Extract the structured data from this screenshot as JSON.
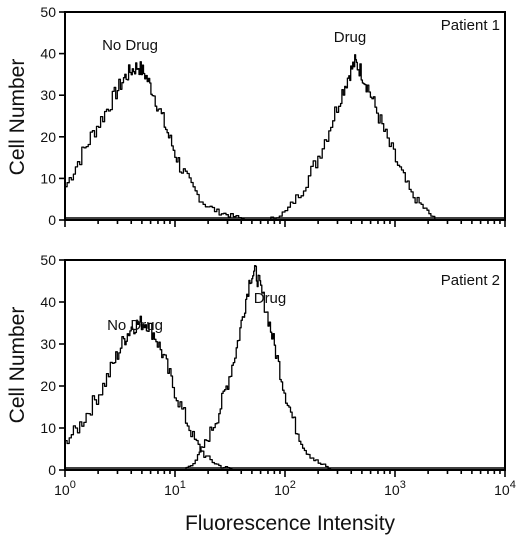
{
  "chart_data": [
    {
      "type": "line",
      "title": "Patient 1",
      "xlabel": "",
      "ylabel": "Cell Number",
      "xscale": "log",
      "xlim": [
        1,
        10000
      ],
      "ylim": [
        0,
        50
      ],
      "yticks": [
        "0",
        "10",
        "20",
        "30",
        "40",
        "50"
      ],
      "series": [
        {
          "name": "No Drug",
          "x": [
            1.0,
            1.3,
            1.7,
            2.2,
            2.8,
            3.4,
            4.0,
            4.6,
            5.3,
            6.2,
            7.5,
            9.0,
            11,
            14,
            18,
            24,
            32,
            45
          ],
          "y": [
            8,
            14,
            20,
            25,
            30,
            34,
            36,
            37,
            35,
            31,
            25,
            19,
            13,
            8,
            4,
            2,
            1,
            0
          ]
        },
        {
          "name": "Drug",
          "x": [
            70,
            100,
            140,
            190,
            250,
            320,
            380,
            430,
            480,
            560,
            680,
            850,
            1100,
            1400,
            1800,
            2300
          ],
          "y": [
            0,
            2,
            7,
            14,
            22,
            30,
            35,
            38,
            36,
            32,
            26,
            19,
            12,
            6,
            3,
            0
          ]
        }
      ]
    },
    {
      "type": "line",
      "title": "Patient 2",
      "xlabel": "Fluorescence Intensity",
      "ylabel": "Cell Number",
      "xscale": "log",
      "xlim": [
        1,
        10000
      ],
      "ylim": [
        0,
        50
      ],
      "xticks": [
        "10^0",
        "10^1",
        "10^2",
        "10^3",
        "10^4"
      ],
      "yticks": [
        "0",
        "10",
        "20",
        "30",
        "40",
        "50"
      ],
      "series": [
        {
          "name": "No Drug",
          "x": [
            1.0,
            1.3,
            1.7,
            2.2,
            2.8,
            3.4,
            4.0,
            4.7,
            5.5,
            6.5,
            7.8,
            9.5,
            12,
            15,
            19,
            25,
            33
          ],
          "y": [
            7,
            10,
            15,
            20,
            26,
            31,
            34,
            35,
            35,
            32,
            27,
            20,
            13,
            7,
            3,
            1,
            0
          ]
        },
        {
          "name": "Drug",
          "x": [
            12,
            16,
            20,
            25,
            30,
            36,
            42,
            48,
            54,
            60,
            70,
            82,
            98,
            120,
            150,
            190,
            260
          ],
          "y": [
            0,
            3,
            8,
            14,
            21,
            29,
            38,
            46,
            47,
            43,
            36,
            28,
            19,
            11,
            5,
            2,
            0
          ]
        }
      ]
    }
  ]
}
